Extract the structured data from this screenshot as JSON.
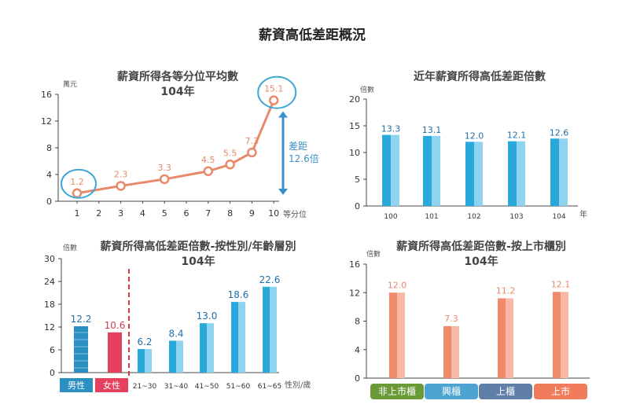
{
  "main_title": "薪資高低差距概況",
  "chart_data": [
    {
      "type": "line",
      "title": "薪資所得各等分位平均數",
      "subtitle": "104年",
      "ylabel": "萬元",
      "xlabel": "等分位",
      "ylim": [
        0,
        16
      ],
      "yticks": [
        "0",
        "4",
        "8",
        "12",
        "16"
      ],
      "x": [
        "1",
        "2",
        "3",
        "4",
        "5",
        "6",
        "7",
        "8",
        "9",
        "10"
      ],
      "points": [
        {
          "x": 1,
          "y": 1.2,
          "label": "1.2"
        },
        {
          "x": 3,
          "y": 2.3,
          "label": "2.3"
        },
        {
          "x": 5,
          "y": 3.3,
          "label": "3.3"
        },
        {
          "x": 7,
          "y": 4.5,
          "label": "4.5"
        },
        {
          "x": 8,
          "y": 5.5,
          "label": "5.5"
        },
        {
          "x": 9,
          "y": 7.3,
          "label": "7.3"
        },
        {
          "x": 10,
          "y": 15.1,
          "label": "15.1"
        }
      ],
      "annotation_line1": "差距",
      "annotation_line2": "12.6倍",
      "colors": {
        "line": "#E8896A",
        "highlight": "#3FA7D6",
        "arrow": "#3A8FC8"
      }
    },
    {
      "type": "bar",
      "title": "近年薪資所得高低差距倍數",
      "ylabel": "倍數",
      "xlabel": "年",
      "ylim": [
        0,
        20
      ],
      "yticks": [
        "0",
        "5",
        "10",
        "15",
        "20"
      ],
      "categories": [
        "100",
        "101",
        "102",
        "103",
        "104"
      ],
      "values": [
        13.3,
        13.1,
        12.0,
        12.1,
        12.6
      ],
      "labels": [
        "13.3",
        "13.1",
        "12.0",
        "12.1",
        "12.6"
      ],
      "colors": {
        "bar": "#29A8DC",
        "bar_light": "#8FD3F0",
        "label": "#1F6FA8"
      }
    },
    {
      "type": "bar",
      "title": "薪資所得高低差距倍數-按性別/年齡層別",
      "subtitle": "104年",
      "ylabel": "倍數",
      "xlabel": "性別/歲",
      "ylim": [
        0,
        30
      ],
      "yticks": [
        "0",
        "6",
        "12",
        "18",
        "24",
        "30"
      ],
      "categories": [
        "男性",
        "女性",
        "21~30",
        "31~40",
        "41~50",
        "51~60",
        "61~65"
      ],
      "values": [
        12.2,
        10.6,
        6.2,
        8.4,
        13.0,
        18.6,
        22.6
      ],
      "labels": [
        "12.2",
        "10.6",
        "6.2",
        "8.4",
        "13.0",
        "18.6",
        "22.6"
      ],
      "colors": {
        "male": "#2B8FC2",
        "female": "#E5405E",
        "age": "#29A8DC",
        "age_light": "#8FD3F0",
        "label": "#1F6FA8",
        "female_label": "#D63A55",
        "divider": "#D9363E"
      }
    },
    {
      "type": "bar",
      "title": "薪資所得高低差距倍數-按上市櫃別",
      "subtitle": "104年",
      "ylabel": "倍數",
      "ylim": [
        0,
        16
      ],
      "yticks": [
        "0",
        "4",
        "8",
        "12",
        "16"
      ],
      "categories": [
        "非上市櫃",
        "興櫃",
        "上櫃",
        "上市"
      ],
      "values": [
        12.0,
        7.3,
        11.2,
        12.1
      ],
      "labels": [
        "12.0",
        "7.3",
        "11.2",
        "12.1"
      ],
      "colors": {
        "bar": "#F08A6B",
        "bar_light": "#F8B9A4",
        "label": "#E8896A",
        "badges": [
          "#6A9A38",
          "#4FA3D1",
          "#5F7FA8",
          "#F07C5C"
        ]
      }
    }
  ]
}
